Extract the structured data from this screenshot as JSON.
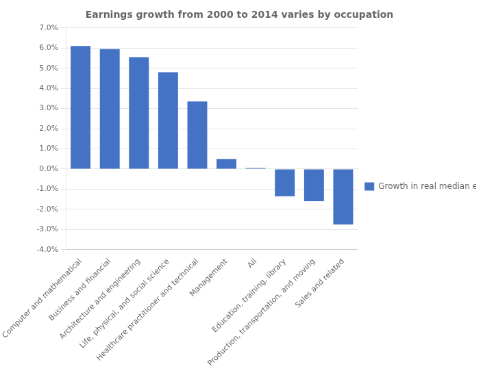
{
  "chart_data": {
    "type": "bar",
    "title": "Earnings growth from 2000 to 2014 varies by occupation",
    "categories": [
      "Computer and mathematical",
      "Business and financial",
      "Architecture and engineering",
      "Life, physical, and social science",
      "Healthcare practitioner and technical",
      "Management",
      "All",
      "Education, training, library",
      "Production, transportation, and moving",
      "Sales and related"
    ],
    "series": [
      {
        "name": "Growth in real median earnings",
        "color": "#4472C4",
        "values": [
          0.061,
          0.0595,
          0.0555,
          0.048,
          0.0335,
          0.005,
          0.0005,
          -0.0135,
          -0.016,
          -0.0275
        ]
      }
    ],
    "ylim": [
      -0.04,
      0.07
    ],
    "yticks": [
      {
        "value": -0.04,
        "label": "-4.0%"
      },
      {
        "value": -0.03,
        "label": "-3.0%"
      },
      {
        "value": -0.02,
        "label": "-2.0%"
      },
      {
        "value": -0.01,
        "label": "-1.0%"
      },
      {
        "value": 0.0,
        "label": "0.0%"
      },
      {
        "value": 0.01,
        "label": "1.0%"
      },
      {
        "value": 0.02,
        "label": "2.0%"
      },
      {
        "value": 0.03,
        "label": "3.0%"
      },
      {
        "value": 0.04,
        "label": "4.0%"
      },
      {
        "value": 0.05,
        "label": "5.0%"
      },
      {
        "value": 0.06,
        "label": "6.0%"
      },
      {
        "value": 0.07,
        "label": "7.0%"
      }
    ],
    "grid": true,
    "legend": "right"
  }
}
